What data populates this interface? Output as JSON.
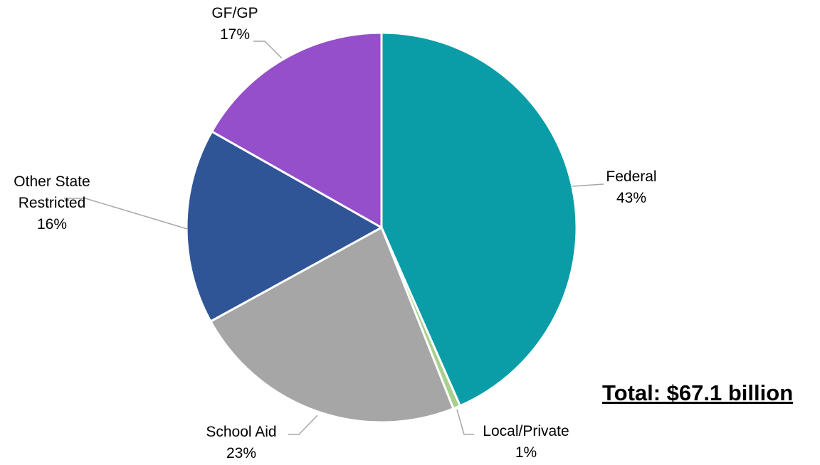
{
  "chart_data": {
    "type": "pie",
    "slices": [
      {
        "name": "Federal",
        "label_lines": [
          "Federal"
        ],
        "pct_label": "43%",
        "value": 43.4,
        "color": "#0A9DA8"
      },
      {
        "name": "Local/Private",
        "label_lines": [
          "Local/Private"
        ],
        "pct_label": "1%",
        "value": 0.6,
        "color": "#A8D08D"
      },
      {
        "name": "School Aid",
        "label_lines": [
          "School Aid"
        ],
        "pct_label": "23%",
        "value": 23.0,
        "color": "#A6A6A6"
      },
      {
        "name": "Other State Restricted",
        "label_lines": [
          "Other State",
          "Restricted"
        ],
        "pct_label": "16%",
        "value": 16.2,
        "color": "#2F5597"
      },
      {
        "name": "GF/GP",
        "label_lines": [
          "GF/GP"
        ],
        "pct_label": "17%",
        "value": 16.8,
        "color": "#954FCA"
      }
    ],
    "total_label": "Total: $67.1 billion",
    "legend": "none"
  }
}
